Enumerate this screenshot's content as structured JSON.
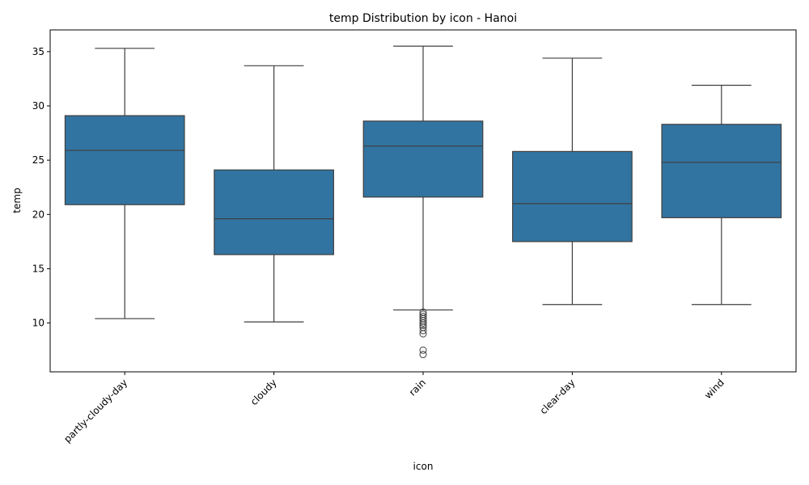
{
  "chart_data": {
    "type": "box",
    "title": "temp Distribution by icon - Hanoi",
    "xlabel": "icon",
    "ylabel": "temp",
    "ylim": [
      5.5,
      37
    ],
    "yticks": [
      10,
      15,
      20,
      25,
      30,
      35
    ],
    "grid": false,
    "color": "#3274a1",
    "categories": [
      "partly-cloudy-day",
      "cloudy",
      "rain",
      "clear-day",
      "wind"
    ],
    "boxes": [
      {
        "category": "partly-cloudy-day",
        "whisker_low": 10.4,
        "q1": 20.9,
        "median": 25.9,
        "q3": 29.1,
        "whisker_high": 35.3,
        "outliers": []
      },
      {
        "category": "cloudy",
        "whisker_low": 10.1,
        "q1": 16.3,
        "median": 19.6,
        "q3": 24.1,
        "whisker_high": 33.7,
        "outliers": []
      },
      {
        "category": "rain",
        "whisker_low": 11.2,
        "q1": 21.6,
        "median": 26.3,
        "q3": 28.6,
        "whisker_high": 35.5,
        "outliers": [
          11.0,
          10.8,
          10.6,
          10.4,
          10.2,
          10.0,
          9.8,
          9.6,
          9.3,
          9.0,
          7.5,
          7.1
        ]
      },
      {
        "category": "clear-day",
        "whisker_low": 11.7,
        "q1": 17.5,
        "median": 21.0,
        "q3": 25.8,
        "whisker_high": 34.4,
        "outliers": []
      },
      {
        "category": "wind",
        "whisker_low": 11.7,
        "q1": 19.7,
        "median": 24.8,
        "q3": 28.3,
        "whisker_high": 31.9,
        "outliers": []
      }
    ]
  }
}
